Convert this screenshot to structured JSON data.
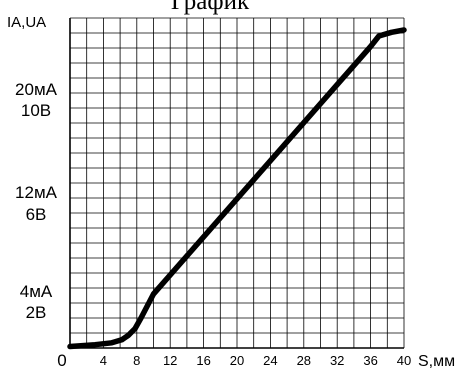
{
  "chart_data": {
    "type": "line",
    "title": "График",
    "ylabel": "IA,UA",
    "xlabel": "S,мм",
    "x_ticks": [
      0,
      4,
      8,
      12,
      16,
      20,
      24,
      28,
      32,
      36,
      40
    ],
    "xlim": [
      0,
      40
    ],
    "ylim": [
      0,
      22
    ],
    "y_ticks": [
      {
        "value": 20,
        "label_line1": "20мА",
        "label_line2": "10В"
      },
      {
        "value": 12,
        "label_line1": "12мА",
        "label_line2": "6В"
      },
      {
        "value": 4,
        "label_line1": "4мА",
        "label_line2": "2В"
      }
    ],
    "grid": true,
    "series": [
      {
        "x": [
          0,
          3,
          5,
          6.2,
          7,
          7.8,
          8.5,
          10,
          36,
          37,
          38.5,
          40
        ],
        "y": [
          0.1,
          0.22,
          0.35,
          0.55,
          0.85,
          1.3,
          2.0,
          3.6,
          20.1,
          20.8,
          21.05,
          21.2
        ]
      }
    ],
    "line_color": "#000000"
  }
}
